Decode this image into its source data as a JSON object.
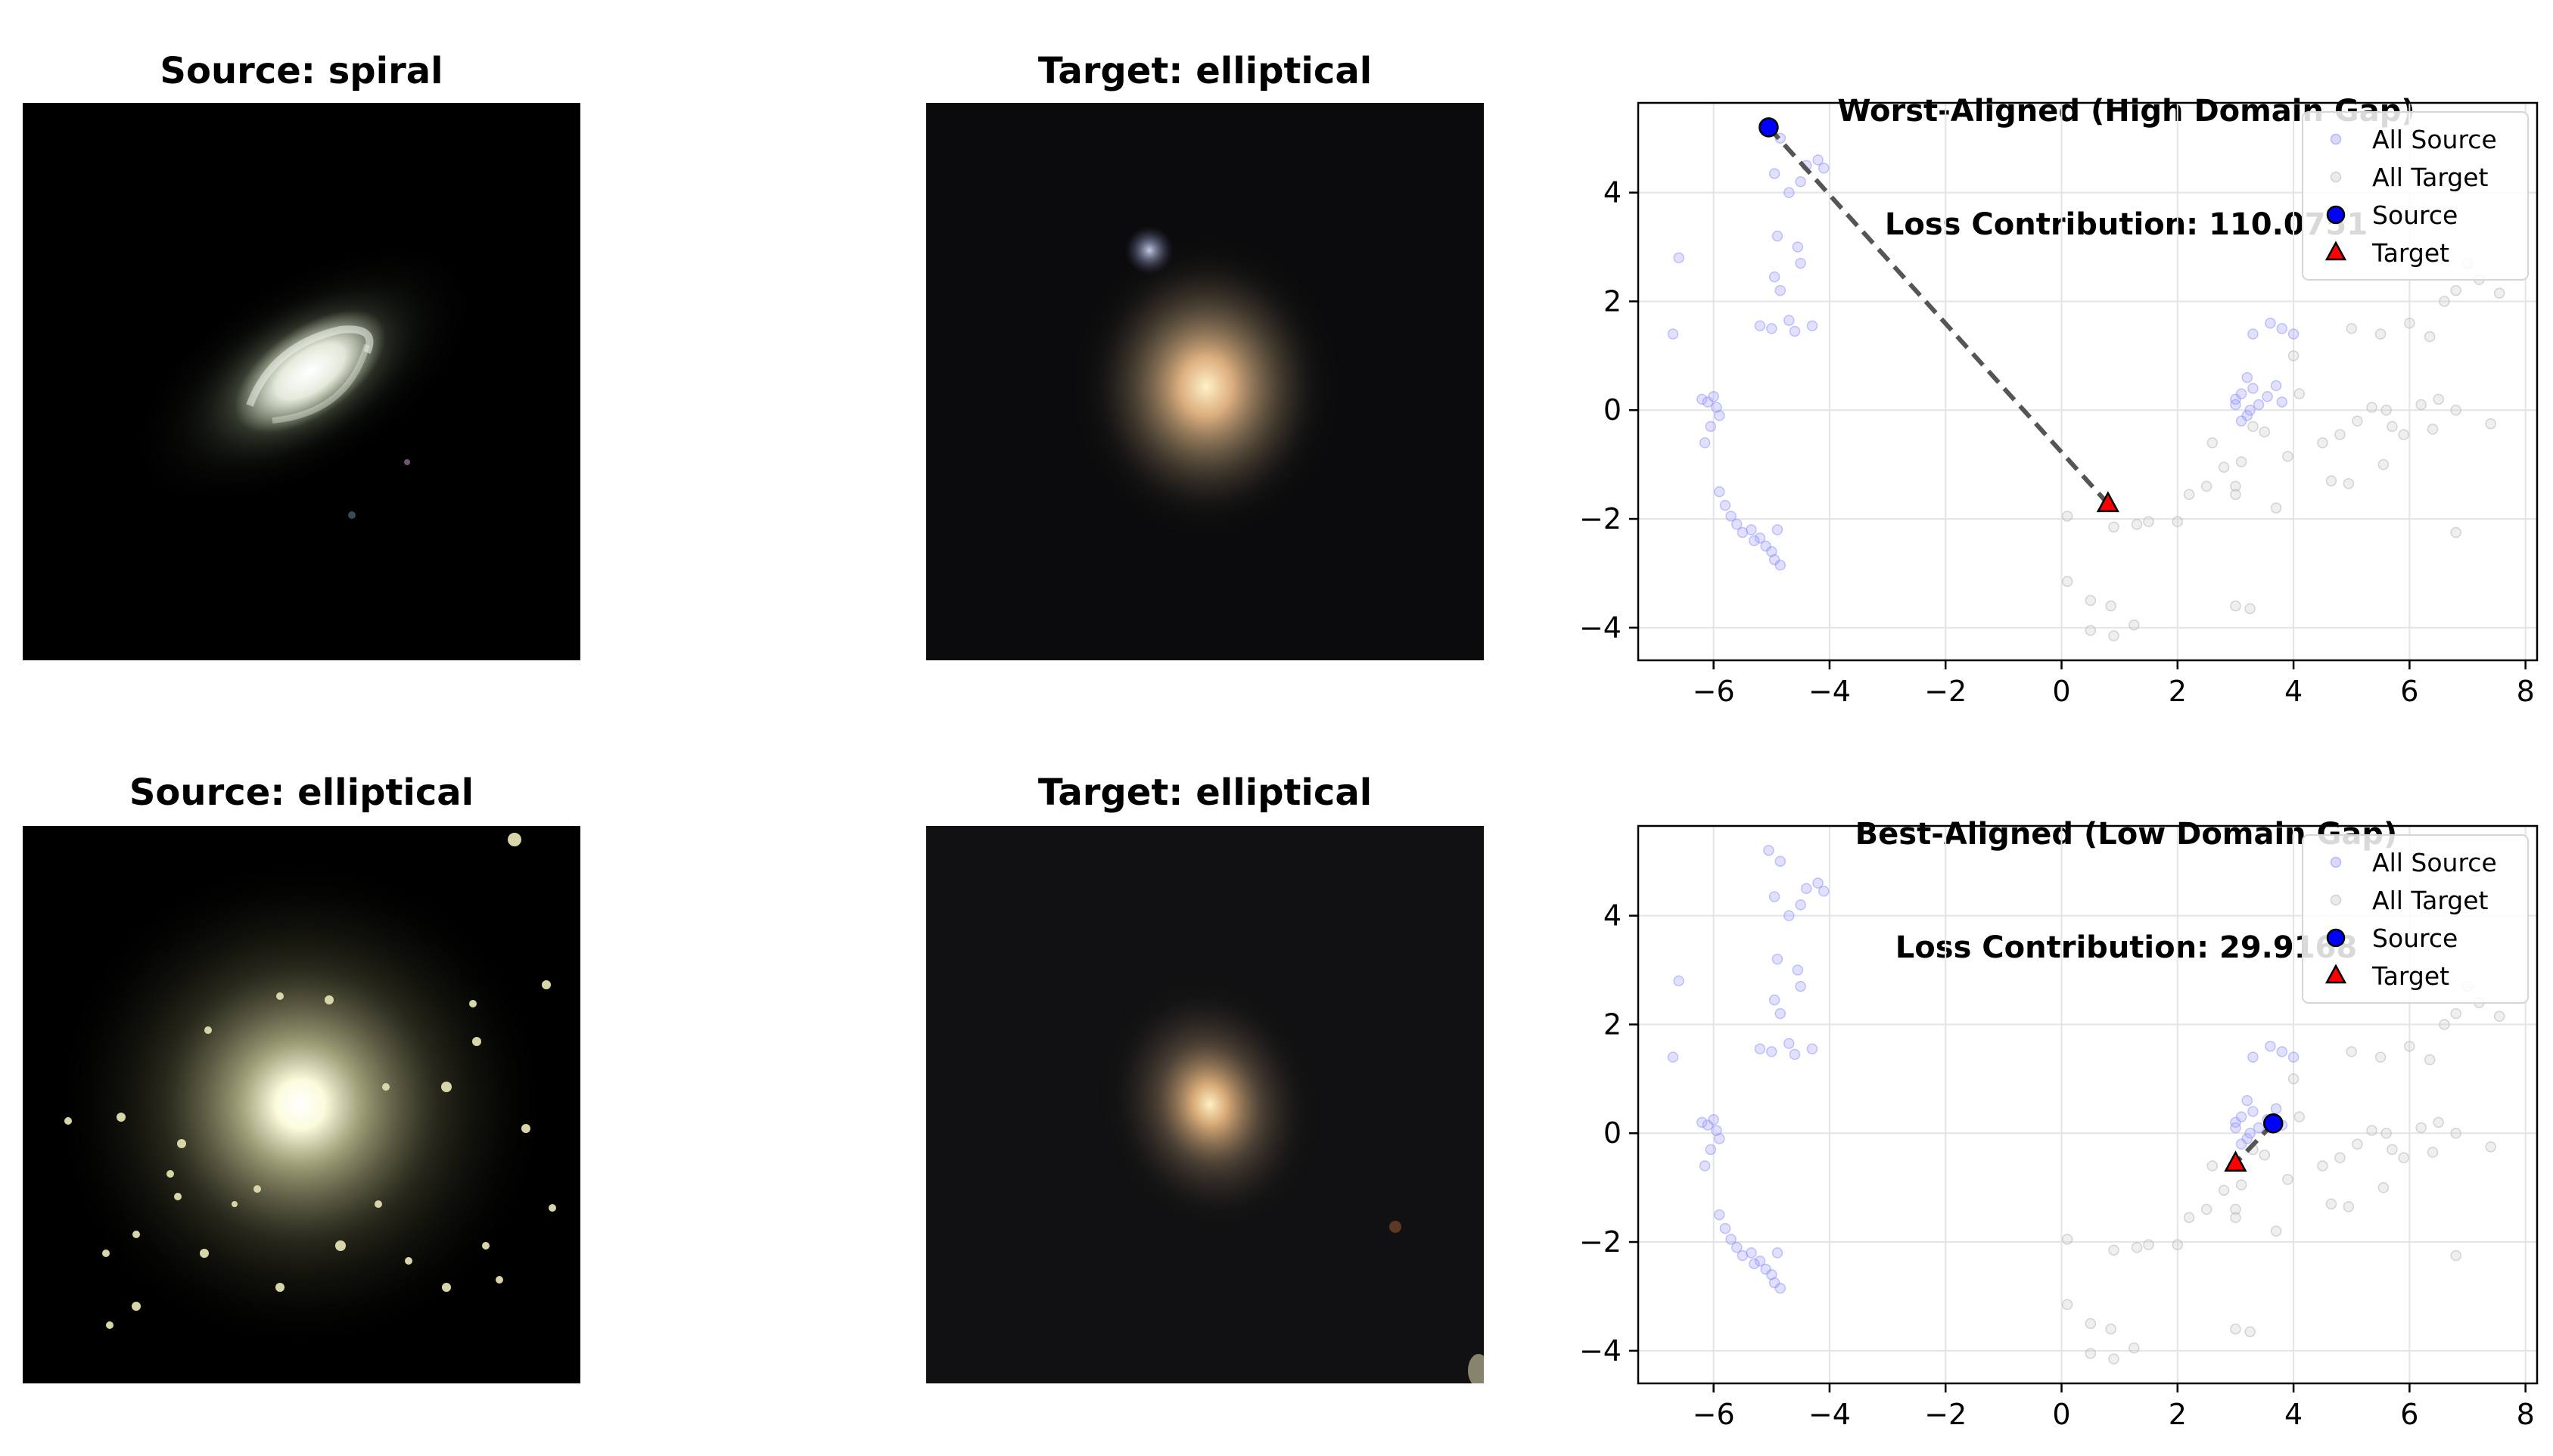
{
  "images": [
    {
      "title": "Source: spiral",
      "kind": "spiral"
    },
    {
      "title": "Target: elliptical",
      "kind": "target-elliptical-a"
    },
    {
      "title": "Source: elliptical",
      "kind": "source-elliptical"
    },
    {
      "title": "Target: elliptical",
      "kind": "target-elliptical-b"
    }
  ],
  "colors": {
    "source": "#0000ff",
    "target": "#ff0000",
    "all_source": "#aaaaff",
    "all_target": "#d0d0d0",
    "line": "#555555"
  },
  "chart_data": [
    {
      "type": "scatter",
      "title": "Worst-Aligned (High Domain Gap)",
      "subtitle": "Loss Contribution: 110.0751",
      "xlim": [
        -7.3,
        8.2
      ],
      "ylim": [
        -4.6,
        5.65
      ],
      "xticks": [
        -6,
        -4,
        -2,
        0,
        2,
        4,
        6,
        8
      ],
      "yticks": [
        -4,
        -2,
        0,
        2,
        4
      ],
      "xticklabels": [
        "−6",
        "−4",
        "−2",
        "0",
        "2",
        "4",
        "6",
        "8"
      ],
      "yticklabels": [
        "−4",
        "−2",
        "0",
        "2",
        "4"
      ],
      "grid": true,
      "legend_position": "top-right",
      "legend": [
        "All Source",
        "All Target",
        "Source",
        "Target"
      ],
      "highlight": {
        "source": [
          -5.05,
          5.2
        ],
        "target": [
          0.8,
          -1.72
        ]
      }
    },
    {
      "type": "scatter",
      "title": "Best-Aligned (Low Domain Gap)",
      "subtitle": "Loss Contribution: 29.9168",
      "xlim": [
        -7.3,
        8.2
      ],
      "ylim": [
        -4.6,
        5.65
      ],
      "xticks": [
        -6,
        -4,
        -2,
        0,
        2,
        4,
        6,
        8
      ],
      "yticks": [
        -4,
        -2,
        0,
        2,
        4
      ],
      "xticklabels": [
        "−6",
        "−4",
        "−2",
        "0",
        "2",
        "4",
        "6",
        "8"
      ],
      "yticklabels": [
        "−4",
        "−2",
        "0",
        "2",
        "4"
      ],
      "grid": true,
      "legend_position": "top-right",
      "legend": [
        "All Source",
        "All Target",
        "Source",
        "Target"
      ],
      "highlight": {
        "source": [
          3.65,
          0.18
        ],
        "target": [
          3.0,
          -0.55
        ]
      }
    }
  ],
  "all_source_points": [
    [
      -5.05,
      5.2
    ],
    [
      -4.85,
      5.0
    ],
    [
      -4.95,
      4.35
    ],
    [
      -4.7,
      4.0
    ],
    [
      -4.5,
      4.2
    ],
    [
      -4.4,
      4.5
    ],
    [
      -4.2,
      4.6
    ],
    [
      -4.1,
      4.45
    ],
    [
      -4.9,
      3.2
    ],
    [
      -4.55,
      3.0
    ],
    [
      -4.5,
      2.7
    ],
    [
      -4.95,
      2.45
    ],
    [
      -4.85,
      2.2
    ],
    [
      -6.6,
      2.8
    ],
    [
      -6.7,
      1.4
    ],
    [
      -5.2,
      1.55
    ],
    [
      -5.0,
      1.5
    ],
    [
      -4.7,
      1.65
    ],
    [
      -4.6,
      1.45
    ],
    [
      -4.3,
      1.55
    ],
    [
      -6.2,
      0.2
    ],
    [
      -6.1,
      0.15
    ],
    [
      -6.0,
      0.25
    ],
    [
      -5.95,
      0.05
    ],
    [
      -5.9,
      -0.1
    ],
    [
      -6.05,
      -0.3
    ],
    [
      -6.15,
      -0.6
    ],
    [
      -5.9,
      -1.5
    ],
    [
      -5.8,
      -1.75
    ],
    [
      -5.7,
      -1.95
    ],
    [
      -5.6,
      -2.1
    ],
    [
      -5.5,
      -2.25
    ],
    [
      -5.35,
      -2.2
    ],
    [
      -5.2,
      -2.35
    ],
    [
      -5.1,
      -2.5
    ],
    [
      -5.0,
      -2.6
    ],
    [
      -4.95,
      -2.75
    ],
    [
      -4.85,
      -2.85
    ],
    [
      -4.9,
      -2.2
    ],
    [
      -5.3,
      -2.4
    ],
    [
      3.0,
      0.2
    ],
    [
      3.1,
      0.3
    ],
    [
      3.2,
      0.6
    ],
    [
      3.3,
      0.4
    ],
    [
      3.4,
      0.1
    ],
    [
      3.55,
      0.25
    ],
    [
      3.7,
      0.45
    ],
    [
      3.8,
      0.15
    ],
    [
      3.2,
      -0.1
    ],
    [
      3.0,
      0.1
    ],
    [
      3.1,
      -0.2
    ],
    [
      3.3,
      1.4
    ],
    [
      3.6,
      1.6
    ],
    [
      3.8,
      1.5
    ],
    [
      4.0,
      1.4
    ],
    [
      3.25,
      0.0
    ]
  ],
  "all_target_points": [
    [
      3.3,
      -0.3
    ],
    [
      3.5,
      -0.4
    ],
    [
      3.9,
      -0.85
    ],
    [
      3.1,
      -0.95
    ],
    [
      2.8,
      -1.05
    ],
    [
      3.0,
      -1.4
    ],
    [
      3.0,
      -1.55
    ],
    [
      3.7,
      -1.8
    ],
    [
      2.5,
      -1.4
    ],
    [
      2.6,
      -0.6
    ],
    [
      2.2,
      -1.55
    ],
    [
      2.0,
      -2.05
    ],
    [
      1.5,
      -2.05
    ],
    [
      1.3,
      -2.1
    ],
    [
      0.9,
      -2.15
    ],
    [
      0.1,
      -1.95
    ],
    [
      0.1,
      -3.15
    ],
    [
      0.5,
      -3.5
    ],
    [
      0.85,
      -3.6
    ],
    [
      1.25,
      -3.95
    ],
    [
      0.5,
      -4.05
    ],
    [
      0.9,
      -4.15
    ],
    [
      3.0,
      -3.6
    ],
    [
      3.25,
      -3.65
    ],
    [
      4.5,
      -0.6
    ],
    [
      4.8,
      -0.45
    ],
    [
      5.1,
      -0.2
    ],
    [
      5.35,
      0.05
    ],
    [
      5.6,
      0.0
    ],
    [
      5.7,
      -0.3
    ],
    [
      5.9,
      -0.45
    ],
    [
      6.2,
      0.1
    ],
    [
      6.4,
      -0.35
    ],
    [
      6.5,
      0.2
    ],
    [
      6.8,
      0.0
    ],
    [
      4.95,
      -1.35
    ],
    [
      4.65,
      -1.3
    ],
    [
      5.55,
      -1.0
    ],
    [
      5.0,
      1.5
    ],
    [
      5.5,
      1.4
    ],
    [
      6.0,
      1.6
    ],
    [
      6.35,
      1.35
    ],
    [
      6.6,
      2.0
    ],
    [
      6.8,
      2.2
    ],
    [
      7.2,
      2.4
    ],
    [
      7.55,
      2.15
    ],
    [
      7.0,
      2.7
    ],
    [
      6.8,
      -2.25
    ],
    [
      7.4,
      -0.25
    ],
    [
      4.1,
      0.3
    ],
    [
      4.0,
      1.0
    ]
  ]
}
